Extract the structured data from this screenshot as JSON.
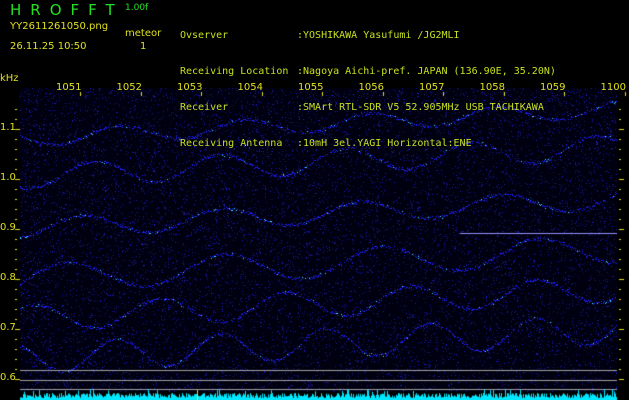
{
  "header": {
    "app_title": "HROFFT",
    "version": "1.00f",
    "filename": "YY2611261050.png",
    "datetime": "26.11.25 10:50",
    "mode": "meteor",
    "count": "1"
  },
  "info": [
    {
      "label": "Ovserver",
      "value": ":YOSHIKAWA Yasufumi /JG2MLI"
    },
    {
      "label": "Receiving Location",
      "value": ":Nagoya Aichi-pref. JAPAN (136.90E, 35.20N)"
    },
    {
      "label": "Receiver",
      "value": ":SMArt RTL-SDR V5 52.905MHz USB TACHIKAWA"
    },
    {
      "label": "Receiving Antenna",
      "value": ":10mH 3el.YAGI Horizontal:ENE"
    }
  ],
  "chart_data": {
    "type": "heatmap",
    "ylabel": "kHz",
    "x_ticks": [
      "1051",
      "1052",
      "1053",
      "1054",
      "1055",
      "1056",
      "1057",
      "1058",
      "1059",
      "1100"
    ],
    "y_ticks": [
      "1.1",
      "1.0",
      "0.9",
      "0.8",
      "0.7",
      "0.6"
    ],
    "ylim": [
      0.58,
      1.18
    ],
    "colors": {
      "background": "#000000",
      "signal": "#2020ff",
      "peak": "#40e0ff",
      "histogram": "#00e8ff",
      "axis": "#e0e020"
    }
  }
}
